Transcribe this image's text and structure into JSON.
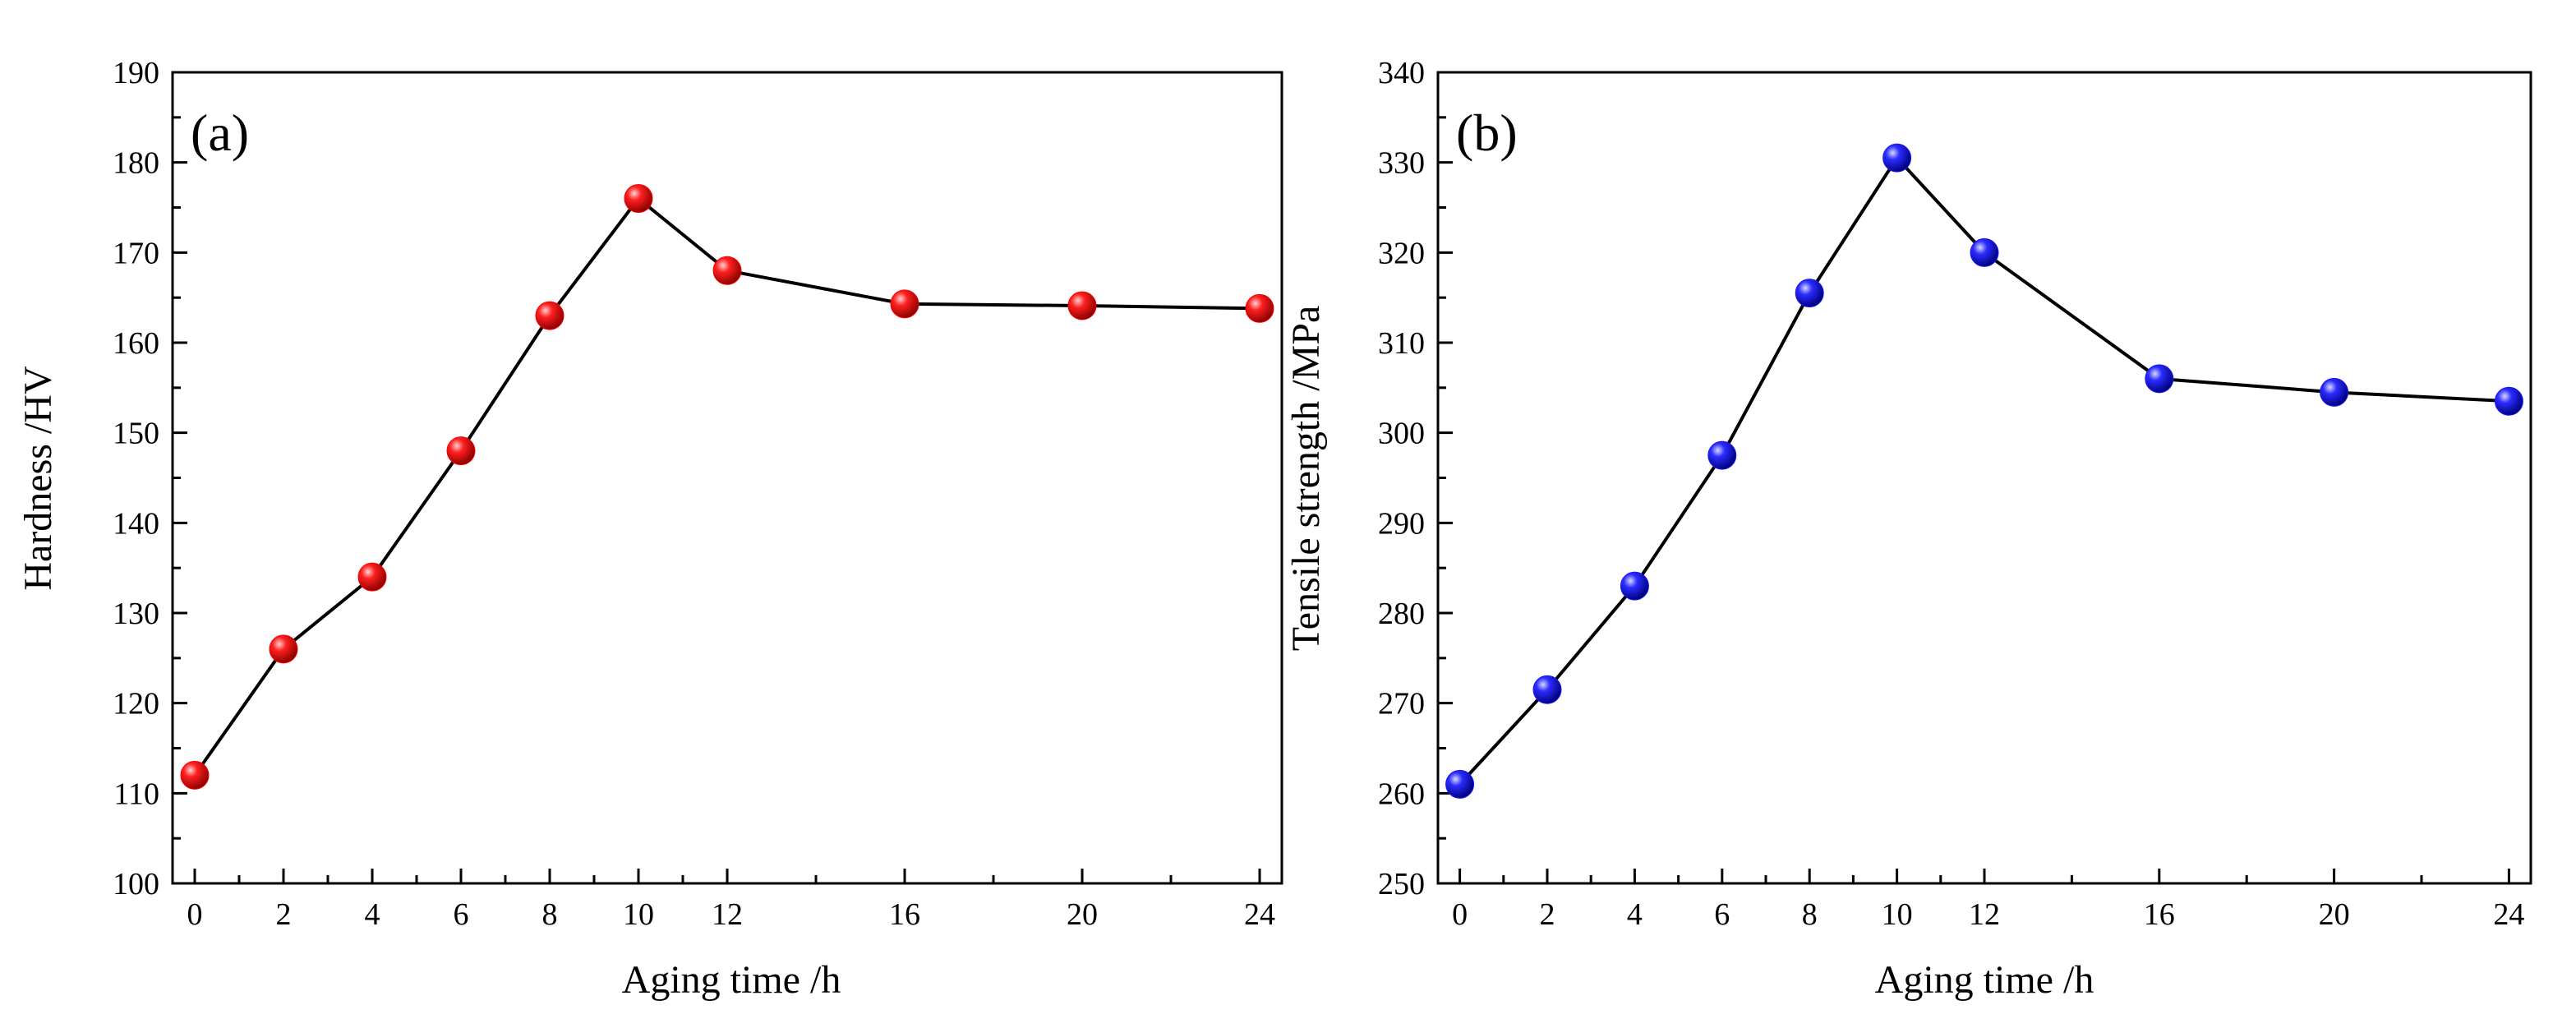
{
  "chart_data": [
    {
      "type": "line",
      "panel_label": "(a)",
      "x": [
        0,
        2,
        4,
        6,
        8,
        10,
        12,
        16,
        20,
        24
      ],
      "values": [
        112,
        126,
        134,
        148,
        163,
        176,
        168,
        164.3,
        164.1,
        163.8
      ],
      "marker_color": "#ff0000",
      "xlabel": "Aging time /h",
      "ylabel": "Hardness /HV",
      "xlim": [
        -0.5,
        24.5
      ],
      "ylim": [
        100,
        190
      ],
      "xticks": [
        0,
        2,
        4,
        6,
        8,
        10,
        12,
        16,
        20,
        24
      ],
      "xtick_labels": [
        "0",
        "2",
        "4",
        "6",
        "8",
        "10",
        "12",
        "16",
        "20",
        "24"
      ],
      "yticks": [
        100,
        110,
        120,
        130,
        140,
        150,
        160,
        170,
        180,
        190
      ],
      "ytick_labels": [
        "100",
        "110",
        "120",
        "130",
        "140",
        "150",
        "160",
        "170",
        "180",
        "190"
      ],
      "grid": false
    },
    {
      "type": "line",
      "panel_label": "(b)",
      "x": [
        0,
        2,
        4,
        6,
        8,
        10,
        12,
        16,
        20,
        24
      ],
      "values": [
        261,
        271.5,
        283,
        297.5,
        315.5,
        330.5,
        320,
        306,
        304.5,
        303.5
      ],
      "marker_color": "#1a1aff",
      "xlabel": "Aging time /h",
      "ylabel": "Tensile strength /MPa",
      "xlim": [
        -0.5,
        24.5
      ],
      "ylim": [
        250,
        340
      ],
      "xticks": [
        0,
        2,
        4,
        6,
        8,
        10,
        12,
        16,
        20,
        24
      ],
      "xtick_labels": [
        "0",
        "2",
        "4",
        "6",
        "8",
        "10",
        "12",
        "16",
        "20",
        "24"
      ],
      "yticks": [
        250,
        260,
        270,
        280,
        290,
        300,
        310,
        320,
        330,
        340
      ],
      "ytick_labels": [
        "250",
        "260",
        "270",
        "280",
        "290",
        "300",
        "310",
        "320",
        "330",
        "340"
      ],
      "grid": false
    }
  ]
}
